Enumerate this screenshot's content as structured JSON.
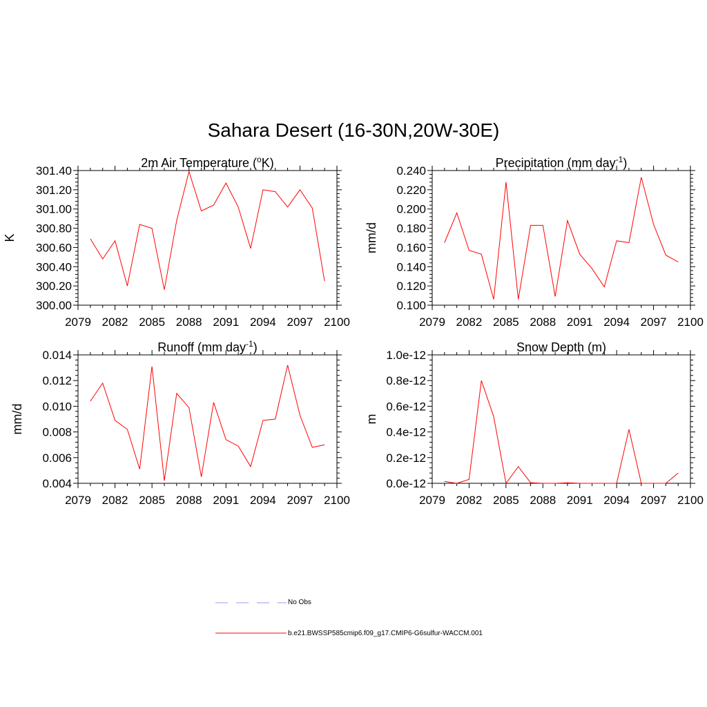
{
  "title": "Sahara Desert (16-30N,20W-30E)",
  "legend": {
    "items": [
      {
        "label": "No Obs",
        "color": "#9999ee",
        "style": "dashed"
      },
      {
        "label": "b.e21.BWSSP585cmip6.f09_g17.CMIP6-G6sulfur-WACCM.001",
        "color": "#ff0000",
        "style": "solid"
      }
    ]
  },
  "chart_data": [
    {
      "type": "line",
      "title": "2m Air Temperature (",
      "title_sup": "o",
      "title_after": "K)",
      "ylabel": "K",
      "xlim": [
        2079,
        2100
      ],
      "ylim": [
        300.0,
        301.4
      ],
      "xticks": [
        2079,
        2082,
        2085,
        2088,
        2091,
        2094,
        2097,
        2100
      ],
      "yticks": [
        "300.00",
        "300.20",
        "300.40",
        "300.60",
        "300.80",
        "301.00",
        "301.20",
        "301.40"
      ],
      "yminor": 4,
      "series": [
        {
          "color": "#ff0000",
          "x": [
            2080,
            2081,
            2082,
            2083,
            2084,
            2085,
            2086,
            2087,
            2088,
            2089,
            2090,
            2091,
            2092,
            2093,
            2094,
            2095,
            2096,
            2097,
            2098,
            2099
          ],
          "values": [
            300.69,
            300.48,
            300.67,
            300.2,
            300.84,
            300.8,
            300.16,
            300.88,
            301.39,
            300.98,
            301.04,
            301.27,
            301.02,
            300.59,
            301.2,
            301.18,
            301.02,
            301.2,
            301.01,
            300.25
          ]
        }
      ]
    },
    {
      "type": "line",
      "title": "Precipitation (mm day",
      "title_sup": "-1",
      "title_after": ")",
      "ylabel": "mm/d",
      "xlim": [
        2079,
        2100
      ],
      "ylim": [
        0.1,
        0.24
      ],
      "xticks": [
        2079,
        2082,
        2085,
        2088,
        2091,
        2094,
        2097,
        2100
      ],
      "yticks": [
        "0.100",
        "0.120",
        "0.140",
        "0.160",
        "0.180",
        "0.200",
        "0.220",
        "0.240"
      ],
      "yminor": 4,
      "series": [
        {
          "color": "#ff0000",
          "x": [
            2080,
            2081,
            2082,
            2083,
            2084,
            2085,
            2086,
            2087,
            2088,
            2089,
            2090,
            2091,
            2092,
            2093,
            2094,
            2095,
            2096,
            2097,
            2098,
            2099
          ],
          "values": [
            0.165,
            0.196,
            0.157,
            0.153,
            0.106,
            0.228,
            0.106,
            0.183,
            0.183,
            0.109,
            0.188,
            0.153,
            0.138,
            0.119,
            0.167,
            0.165,
            0.233,
            0.184,
            0.152,
            0.145
          ]
        }
      ]
    },
    {
      "type": "line",
      "title": "Runoff (mm day",
      "title_sup": "-1",
      "title_after": ")",
      "ylabel": "mm/d",
      "xlim": [
        2079,
        2100
      ],
      "ylim": [
        0.004,
        0.014
      ],
      "xticks": [
        2079,
        2082,
        2085,
        2088,
        2091,
        2094,
        2097,
        2100
      ],
      "yticks": [
        "0.004",
        "0.006",
        "0.008",
        "0.010",
        "0.012",
        "0.014"
      ],
      "yminor": 4,
      "series": [
        {
          "color": "#ff0000",
          "x": [
            2080,
            2081,
            2082,
            2083,
            2084,
            2085,
            2086,
            2087,
            2088,
            2089,
            2090,
            2091,
            2092,
            2093,
            2094,
            2095,
            2096,
            2097,
            2098,
            2099
          ],
          "values": [
            0.0104,
            0.0118,
            0.0089,
            0.0082,
            0.0051,
            0.0131,
            0.0042,
            0.011,
            0.0099,
            0.0045,
            0.0103,
            0.0074,
            0.0069,
            0.0053,
            0.0089,
            0.009,
            0.0132,
            0.0093,
            0.0068,
            0.007
          ]
        }
      ]
    },
    {
      "type": "line",
      "title": "Snow Depth (m)",
      "title_sup": "",
      "title_after": "",
      "ylabel": "m",
      "xlim": [
        2079,
        2100
      ],
      "ylim": [
        0,
        1e-12
      ],
      "xticks": [
        2079,
        2082,
        2085,
        2088,
        2091,
        2094,
        2097,
        2100
      ],
      "yticks": [
        "0.0e-12",
        "0.2e-12",
        "0.4e-12",
        "0.6e-12",
        "0.8e-12",
        "1.0e-12"
      ],
      "yminor": 4,
      "series": [
        {
          "color": "#ff0000",
          "x": [
            2080,
            2081,
            2082,
            2083,
            2084,
            2085,
            2086,
            2087,
            2088,
            2089,
            2090,
            2091,
            2092,
            2093,
            2094,
            2095,
            2096,
            2097,
            2098,
            2099
          ],
          "values": [
            1.5e-14,
            0.0,
            3e-14,
            8e-13,
            5.2e-13,
            0.0,
            1.3e-13,
            5e-15,
            0.0,
            0.0,
            4e-15,
            0.0,
            0.0,
            0.0,
            0.0,
            4.2e-13,
            0.0,
            0.0,
            0.0,
            8e-14
          ]
        }
      ]
    }
  ]
}
